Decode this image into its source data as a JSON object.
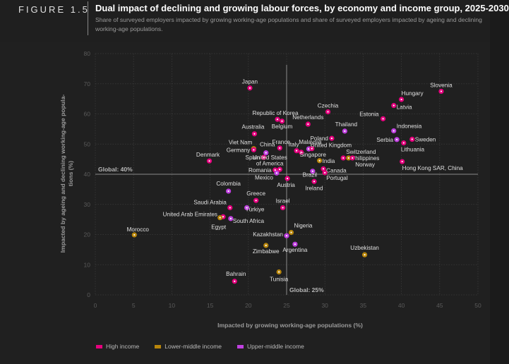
{
  "figure_label": "FIGURE 1.5",
  "colors": {
    "high_income": "#e6007e",
    "lower_middle_income": "#b8860b",
    "upper_middle_income": "#c040e0",
    "grid": "#3a3a3a",
    "reference_line": "#8a8a8a"
  },
  "chart_data": {
    "type": "scatter",
    "title": "Dual impact of declining and growing labour forces, by economy and income group, 2025-2030",
    "subtitle": "Share of surveyed employers impacted by growing working-age populations and share of surveyed employers impacted by ageing and declining working-age populations.",
    "xlabel": "Impacted by growing working-age populations (%)",
    "ylabel": "Impacted by ageing and declining working-age popula-tions (%)",
    "xlim": [
      0,
      50
    ],
    "ylim": [
      0,
      80
    ],
    "xticks": [
      "0",
      "5",
      "10",
      "15",
      "20",
      "25",
      "30",
      "35",
      "40",
      "45",
      "50"
    ],
    "yticks": [
      "0",
      "10",
      "20",
      "30",
      "40",
      "50",
      "60",
      "70",
      "80"
    ],
    "grid": true,
    "reference_lines": [
      {
        "axis": "y",
        "value": 40,
        "label": "Global: 40%"
      },
      {
        "axis": "x",
        "value": 25,
        "label": "Global: 25%"
      }
    ],
    "legend": {
      "position": "bottom-left",
      "entries": [
        {
          "key": "high_income",
          "label": "High income"
        },
        {
          "key": "lower_middle_income",
          "label": "Lower-middle income"
        },
        {
          "key": "upper_middle_income",
          "label": "Upper-middle income"
        }
      ]
    },
    "points": [
      {
        "label": "Slovenia",
        "x": 45.2,
        "y": 67.5,
        "group": "high_income"
      },
      {
        "label": "Hungary",
        "x": 40.0,
        "y": 64.8,
        "group": "high_income"
      },
      {
        "label": "Latvia",
        "x": 39.0,
        "y": 62.8,
        "group": "high_income"
      },
      {
        "label": "Japan",
        "x": 20.2,
        "y": 68.6,
        "group": "high_income"
      },
      {
        "label": "Czechia",
        "x": 30.4,
        "y": 60.7,
        "group": "high_income"
      },
      {
        "label": "Estonia",
        "x": 37.6,
        "y": 58.4,
        "group": "high_income"
      },
      {
        "label": "Republic of Korea",
        "x": 23.8,
        "y": 58.2,
        "group": "high_income"
      },
      {
        "label": "Belgium",
        "x": 24.4,
        "y": 57.6,
        "group": "high_income"
      },
      {
        "label": "Netherlands",
        "x": 27.8,
        "y": 56.6,
        "group": "high_income"
      },
      {
        "label": "Indonesia",
        "x": 39.0,
        "y": 54.4,
        "group": "upper_middle_income"
      },
      {
        "label": "Thailand",
        "x": 32.6,
        "y": 54.3,
        "group": "upper_middle_income"
      },
      {
        "label": "Poland",
        "x": 30.9,
        "y": 51.9,
        "group": "high_income"
      },
      {
        "label": "Australia",
        "x": 20.8,
        "y": 53.4,
        "group": "high_income"
      },
      {
        "label": "Serbia",
        "x": 39.4,
        "y": 51.5,
        "group": "upper_middle_income"
      },
      {
        "label": "Sweden",
        "x": 41.4,
        "y": 51.6,
        "group": "high_income"
      },
      {
        "label": "Lithuania",
        "x": 40.3,
        "y": 50.4,
        "group": "high_income"
      },
      {
        "label": "France",
        "x": 24.1,
        "y": 48.7,
        "group": "high_income"
      },
      {
        "label": "Viet Nam",
        "x": 20.7,
        "y": 48.5,
        "group": "lower_middle_income"
      },
      {
        "label": "Germany",
        "x": 20.7,
        "y": 48.1,
        "group": "high_income"
      },
      {
        "label": "China",
        "x": 22.3,
        "y": 47.1,
        "group": "upper_middle_income"
      },
      {
        "label": "Italy",
        "x": 26.3,
        "y": 47.8,
        "group": "high_income"
      },
      {
        "label": "Malaysia",
        "x": 27.9,
        "y": 48.4,
        "group": "upper_middle_income"
      },
      {
        "label": "United Kingdom",
        "x": 28.3,
        "y": 48.5,
        "group": "high_income"
      },
      {
        "label": "Singapore",
        "x": 26.9,
        "y": 47.3,
        "group": "high_income"
      },
      {
        "label": "Spain",
        "x": 22.0,
        "y": 45.6,
        "group": "high_income"
      },
      {
        "label": "Switzerland",
        "x": 32.4,
        "y": 45.4,
        "group": "high_income"
      },
      {
        "label": "Philippines",
        "x": 33.1,
        "y": 45.4,
        "group": "lower_middle_income"
      },
      {
        "label": "Norway",
        "x": 33.6,
        "y": 45.4,
        "group": "high_income"
      },
      {
        "label": "India",
        "x": 29.3,
        "y": 44.5,
        "group": "lower_middle_income"
      },
      {
        "label": "Denmark",
        "x": 14.9,
        "y": 44.4,
        "group": "high_income"
      },
      {
        "label": "Hong Kong SAR, China",
        "x": 40.1,
        "y": 44.2,
        "group": "high_income"
      },
      {
        "label": "United States of America",
        "x": 24.1,
        "y": 41.6,
        "group": "high_income"
      },
      {
        "label": "Romania",
        "x": 23.5,
        "y": 41.4,
        "group": "high_income"
      },
      {
        "label": "Canada",
        "x": 29.8,
        "y": 41.8,
        "group": "high_income"
      },
      {
        "label": "Brazil",
        "x": 28.4,
        "y": 41.0,
        "group": "upper_middle_income"
      },
      {
        "label": "Mexico",
        "x": 23.7,
        "y": 40.4,
        "group": "upper_middle_income"
      },
      {
        "label": "Portugal",
        "x": 30.0,
        "y": 40.5,
        "group": "high_income"
      },
      {
        "label": "Austria",
        "x": 25.1,
        "y": 38.6,
        "group": "high_income"
      },
      {
        "label": "Ireland",
        "x": 28.6,
        "y": 37.6,
        "group": "high_income"
      },
      {
        "label": "Colombia",
        "x": 17.4,
        "y": 34.4,
        "group": "upper_middle_income"
      },
      {
        "label": "Greece",
        "x": 21.0,
        "y": 31.3,
        "group": "high_income"
      },
      {
        "label": "Saudi Arabia",
        "x": 17.6,
        "y": 28.9,
        "group": "high_income"
      },
      {
        "label": "Israel",
        "x": 24.5,
        "y": 28.9,
        "group": "high_income"
      },
      {
        "label": "Türkiye",
        "x": 19.8,
        "y": 28.9,
        "group": "upper_middle_income"
      },
      {
        "label": "United Arab Emirates",
        "x": 16.7,
        "y": 25.9,
        "group": "high_income"
      },
      {
        "label": "South Africa",
        "x": 17.7,
        "y": 25.3,
        "group": "upper_middle_income"
      },
      {
        "label": "Egypt",
        "x": 16.3,
        "y": 25.6,
        "group": "lower_middle_income"
      },
      {
        "label": "Morocco",
        "x": 5.1,
        "y": 19.9,
        "group": "lower_middle_income"
      },
      {
        "label": "Nigeria",
        "x": 25.6,
        "y": 20.7,
        "group": "lower_middle_income"
      },
      {
        "label": "Kazakhstan",
        "x": 25.0,
        "y": 19.6,
        "group": "upper_middle_income"
      },
      {
        "label": "Zimbabwe",
        "x": 22.3,
        "y": 16.4,
        "group": "lower_middle_income"
      },
      {
        "label": "Argentina",
        "x": 26.1,
        "y": 16.8,
        "group": "upper_middle_income"
      },
      {
        "label": "Uzbekistan",
        "x": 35.2,
        "y": 13.3,
        "group": "lower_middle_income"
      },
      {
        "label": "Bahrain",
        "x": 18.2,
        "y": 4.5,
        "group": "high_income"
      },
      {
        "label": "Tunisia",
        "x": 24.0,
        "y": 7.6,
        "group": "lower_middle_income"
      }
    ]
  }
}
